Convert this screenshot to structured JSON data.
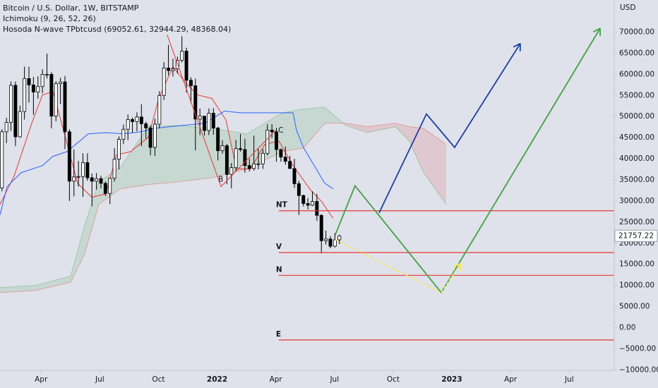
{
  "chart_data": {
    "type": "candlestick",
    "title": "Bitcoin / U.S. Dollar, 1W, BITSTAMP",
    "y_axis_label": "USD",
    "last_price_label": "21757.22",
    "up_color": "#ffffff",
    "down_color": "#000000",
    "outline_color": "#000000",
    "x": [
      1.0,
      1.23,
      1.46,
      1.69,
      1.92,
      2.15,
      2.38,
      2.61,
      2.84,
      3.07,
      3.3,
      3.53,
      3.76,
      3.99,
      4.22,
      4.45,
      4.68,
      4.91,
      5.14,
      5.37,
      5.6,
      5.83,
      6.06,
      6.29,
      6.52,
      6.75,
      6.98,
      7.21,
      7.44,
      7.67,
      7.9,
      8.13,
      8.36,
      8.59,
      8.82,
      9.05,
      9.28,
      9.51,
      9.74,
      9.97,
      10.2,
      10.43,
      10.66,
      10.89,
      11.12,
      11.35,
      11.58,
      11.81,
      12.04,
      12.27,
      12.5,
      12.73,
      12.96,
      13.19,
      13.42,
      13.65,
      13.88,
      14.11,
      14.34,
      14.57,
      14.8,
      15.03,
      15.26,
      15.49,
      15.72,
      15.95,
      16.18,
      16.41,
      16.64,
      16.87,
      17.1,
      17.33,
      17.56,
      17.79,
      18.02,
      18.25
    ],
    "open": [
      33100,
      46400,
      48600,
      57400,
      45200,
      51200,
      59000,
      57500,
      55800,
      57100,
      60000,
      60000,
      50100,
      57800,
      58200,
      46400,
      34700,
      35700,
      35800,
      39100,
      35500,
      34700,
      35300,
      34200,
      31800,
      35400,
      39900,
      44600,
      47000,
      49300,
      48800,
      49900,
      48300,
      47300,
      42700,
      48200,
      55000,
      61500,
      60900,
      61300,
      63300,
      65500,
      58600,
      57300,
      49400,
      50100,
      46700,
      50800,
      47300,
      41900,
      43100,
      36300,
      37900,
      42400,
      42200,
      38400,
      37700,
      38800,
      38800,
      41300,
      46800,
      46400,
      42200,
      40400,
      39400,
      37700,
      34100,
      31300,
      29400,
      29000,
      29900,
      26600,
      20600,
      21000,
      19300,
      20800
    ],
    "high": [
      47000,
      49700,
      58300,
      58300,
      52600,
      61800,
      61800,
      59400,
      59500,
      61200,
      64900,
      60500,
      58400,
      59200,
      59600,
      47000,
      42200,
      39500,
      41300,
      41300,
      36500,
      36600,
      36000,
      34600,
      35500,
      42500,
      45300,
      48100,
      50500,
      49800,
      51000,
      52900,
      48800,
      47900,
      49500,
      56000,
      62900,
      67000,
      63700,
      64200,
      69000,
      66300,
      59300,
      59000,
      51900,
      50100,
      51900,
      52000,
      47600,
      44400,
      43500,
      39000,
      44500,
      45900,
      44700,
      40000,
      45500,
      42400,
      42300,
      48200,
      48200,
      47300,
      42400,
      42900,
      40700,
      40000,
      34800,
      31500,
      30700,
      32300,
      31700,
      26900,
      23000,
      21700,
      22400,
      22000
    ],
    "low": [
      32300,
      43700,
      46600,
      43000,
      45000,
      49300,
      53300,
      50400,
      54200,
      55500,
      59000,
      47200,
      48900,
      53000,
      42300,
      30000,
      31100,
      33400,
      31000,
      34800,
      28800,
      32700,
      33000,
      31200,
      29300,
      34600,
      37500,
      43500,
      44400,
      46200,
      46500,
      43000,
      44800,
      40800,
      40700,
      47200,
      53900,
      59800,
      59500,
      60200,
      62800,
      55700,
      53200,
      42000,
      45600,
      45500,
      45600,
      45700,
      39600,
      41200,
      34000,
      33000,
      36900,
      41700,
      36700,
      37000,
      37200,
      37500,
      37600,
      40800,
      44900,
      39300,
      39300,
      38600,
      37600,
      33100,
      26700,
      28700,
      28000,
      28800,
      25300,
      17600,
      19700,
      18800,
      19000,
      19800
    ],
    "close": [
      46400,
      48600,
      57400,
      45200,
      51200,
      59000,
      57500,
      55800,
      57100,
      60000,
      60000,
      50100,
      57800,
      58200,
      46400,
      34700,
      35700,
      35800,
      39100,
      35500,
      34700,
      35300,
      34200,
      31800,
      35400,
      39900,
      44600,
      47000,
      49300,
      48800,
      49900,
      48300,
      47300,
      42700,
      48200,
      55000,
      61500,
      60900,
      61300,
      63300,
      65500,
      58600,
      57300,
      49400,
      50100,
      46700,
      50800,
      47300,
      41900,
      43100,
      36300,
      37900,
      42400,
      42200,
      38400,
      37700,
      38800,
      38800,
      41300,
      46800,
      46400,
      42200,
      40400,
      39400,
      37700,
      34100,
      31300,
      29400,
      29000,
      29900,
      26600,
      20600,
      21000,
      19300,
      20800,
      21757.22
    ],
    "xlim": [
      0.9,
      32.3
    ],
    "xticks": [
      {
        "value": 3,
        "label": "Apr"
      },
      {
        "value": 6,
        "label": "Jul"
      },
      {
        "value": 9,
        "label": "Oct"
      },
      {
        "value": 12,
        "label": "2022"
      },
      {
        "value": 15,
        "label": "Apr"
      },
      {
        "value": 18,
        "label": "Jul"
      },
      {
        "value": 21,
        "label": "Oct"
      },
      {
        "value": 24,
        "label": "2023"
      },
      {
        "value": 27,
        "label": "Apr"
      },
      {
        "value": 30,
        "label": "Jul"
      }
    ],
    "ylim": [
      -10100,
      77600
    ],
    "yticks": [
      {
        "value": -10000,
        "label": "−10000.00"
      },
      {
        "value": -5000,
        "label": "−5000.00"
      },
      {
        "value": 0,
        "label": "0.00"
      },
      {
        "value": 5000,
        "label": "5000.00"
      },
      {
        "value": 10000,
        "label": "10000.00"
      },
      {
        "value": 15000,
        "label": "15000.00"
      },
      {
        "value": 20000,
        "label": "20000.00"
      },
      {
        "value": 25000,
        "label": "25000.00"
      },
      {
        "value": 30000,
        "label": "30000.00"
      },
      {
        "value": 35000,
        "label": "35000.00"
      },
      {
        "value": 40000,
        "label": "40000.00"
      },
      {
        "value": 45000,
        "label": "45000.00"
      },
      {
        "value": 50000,
        "label": "50000.00"
      },
      {
        "value": 55000,
        "label": "55000.00"
      },
      {
        "value": 60000,
        "label": "60000.00"
      },
      {
        "value": 65000,
        "label": "65000.00"
      },
      {
        "value": 70000,
        "label": "70000.00"
      }
    ],
    "grid": false,
    "ichimoku": {
      "label": "Ichimoku (9, 26, 52, 26)",
      "tenkan": {
        "color": "#e53935",
        "x": [
          0.9,
          1.62,
          2.52,
          3.07,
          3.61,
          4.15,
          4.87,
          5.59,
          6.31,
          6.85,
          7.58,
          8.48,
          9.02,
          9.74,
          10.46,
          11.01,
          11.73,
          12.45,
          12.99,
          13.71,
          14.43,
          15.16,
          15.88,
          16.78,
          17.32,
          17.93
        ],
        "values": [
          29200,
          35900,
          48400,
          55100,
          55900,
          46700,
          34200,
          30900,
          31700,
          40900,
          41700,
          45100,
          54300,
          61800,
          57600,
          55100,
          54300,
          49200,
          37600,
          37600,
          43400,
          44200,
          38400,
          32600,
          30000,
          25900
        ]
      },
      "kijun": {
        "color": "#2962ff",
        "x": [
          0.9,
          1.26,
          1.98,
          3.07,
          3.61,
          4.33,
          5.41,
          6.31,
          7.22,
          8.12,
          8.66,
          9.56,
          11.37,
          12.38,
          13.17,
          15.88,
          16.06,
          16.42,
          16.96,
          17.5,
          17.93
        ],
        "values": [
          26700,
          33400,
          36700,
          38400,
          40600,
          41700,
          45900,
          46200,
          45900,
          46400,
          47100,
          47600,
          48400,
          51300,
          50900,
          50900,
          46700,
          42600,
          38400,
          34200,
          32900
        ]
      },
      "cloud": {
        "up_color": "#43a047",
        "down_color": "#e53935",
        "x": [
          0.9,
          2.7,
          4.51,
          5.23,
          5.95,
          7.04,
          8.48,
          9.92,
          11.73,
          13.53,
          15.34,
          16.42,
          17.5,
          18.58,
          19.67,
          21.11,
          21.83,
          22.56,
          23.71
        ],
        "span_a": [
          9500,
          10000,
          12200,
          24200,
          34500,
          37900,
          47600,
          47900,
          47200,
          45900,
          50900,
          51800,
          52200,
          47900,
          46200,
          47600,
          44200,
          36700,
          29200
        ],
        "span_b": [
          8300,
          8800,
          10800,
          17500,
          29200,
          32900,
          33900,
          34500,
          35500,
          37600,
          41700,
          42600,
          48400,
          48400,
          47600,
          48400,
          47600,
          47200,
          43400
        ]
      }
    },
    "nwave": {
      "label": "Hosoda N-wave TPbtcusd (69052.61, 32944.29, 48368.04)",
      "color": "#e53935",
      "x": [
        9.45,
        12.2,
        14.98
      ],
      "values": [
        69300,
        33400,
        46700
      ],
      "point_labels": [
        null,
        "B",
        "C"
      ],
      "levels": [
        {
          "label": "NT",
          "value": 27700
        },
        {
          "label": "V",
          "value": 17800
        },
        {
          "label": "N",
          "value": 12400
        },
        {
          "label": "E",
          "value": -2900
        }
      ],
      "levels_start": 15.15
    },
    "projections": [
      {
        "color": "#43a047",
        "dashed": false,
        "arrow": true,
        "x": [
          18.04,
          19.05,
          23.46,
          31.58
        ],
        "values": [
          22000,
          33600,
          8300,
          70900
        ]
      },
      {
        "color": "#1e3fa0",
        "dashed": false,
        "arrow": true,
        "x": [
          20.28,
          22.7,
          24.14,
          27.5
        ],
        "values": [
          27200,
          50600,
          42700,
          67300
        ]
      },
      {
        "color": "#f5e84a",
        "dashed": true,
        "arrow": true,
        "x": [
          18.04,
          23.46,
          24.43
        ],
        "values": [
          20900,
          8300,
          15200
        ]
      }
    ]
  }
}
